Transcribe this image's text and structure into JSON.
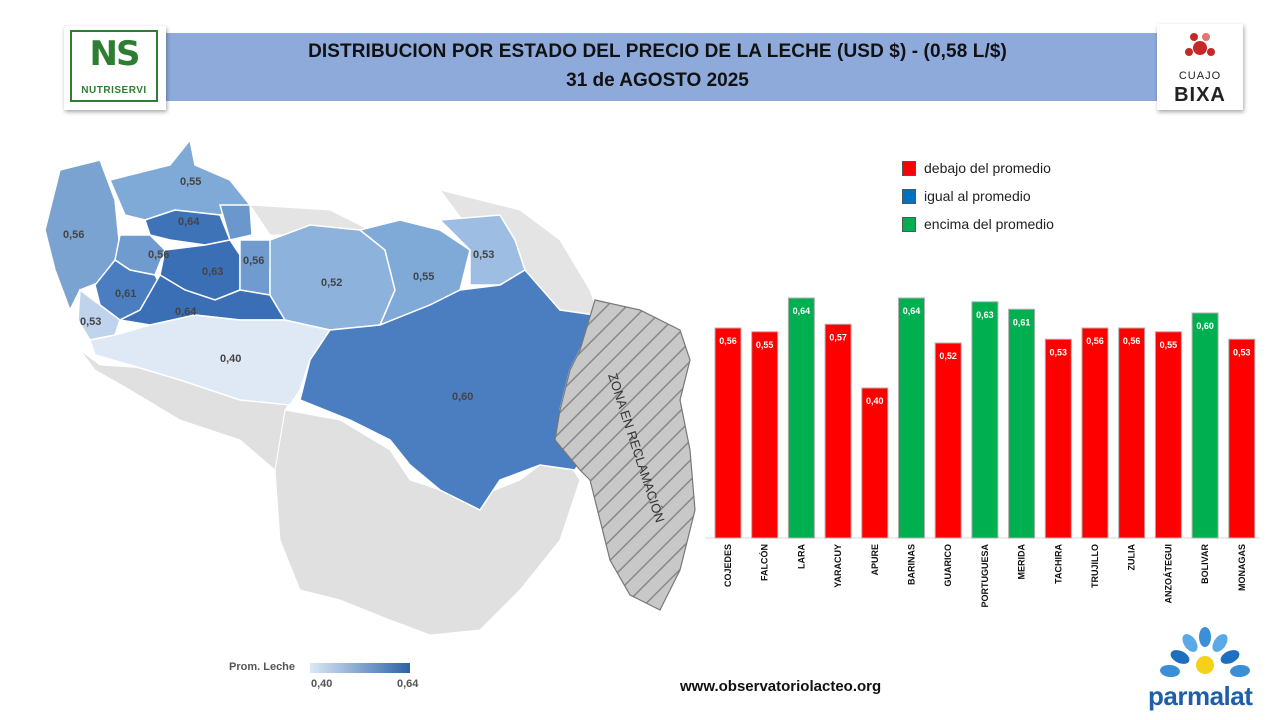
{
  "header": {
    "title_line1": "DISTRIBUCION POR ESTADO DEL PRECIO DE LA LECHE (USD $)  - (0,58 L/$)",
    "title_line2": "31 de AGOSTO 2025",
    "left_logo": {
      "letters": "NS",
      "name": "NUTRISERVI"
    },
    "right_logo": {
      "name": "CUAJO",
      "brand": "BIXA"
    }
  },
  "map": {
    "labels": [
      "0,55",
      "0,64",
      "0,56",
      "0,56",
      "0,63",
      "0,56",
      "0,52",
      "0,55",
      "0,53",
      "0,61",
      "0,64",
      "0,53",
      "0,40",
      "0,60"
    ],
    "claim_zone_label": "ZONA EN RECLAMACIÓN",
    "ramp": {
      "title": "Prom. Leche",
      "min": "0,40",
      "max": "0,64"
    }
  },
  "legend": {
    "items": [
      {
        "label": "debajo del promedio",
        "color": "#ff0000"
      },
      {
        "label": "igual al promedio",
        "color": "#0070c0"
      },
      {
        "label": "encima del promedio",
        "color": "#00b050"
      }
    ]
  },
  "chart_data": {
    "type": "bar",
    "categories": [
      "COJEDES",
      "FALCÓN",
      "LARA",
      "YARACUY",
      "APURE",
      "BARINAS",
      "GUARICO",
      "PORTUGUESA",
      "MERIDA",
      "TACHIRA",
      "TRUJILLO",
      "ZULIA",
      "ANZOÁTEGUI",
      "BOLIVAR",
      "MONAGAS"
    ],
    "values": [
      0.56,
      0.55,
      0.64,
      0.57,
      0.4,
      0.64,
      0.52,
      0.63,
      0.61,
      0.53,
      0.56,
      0.56,
      0.55,
      0.6,
      0.53
    ],
    "value_labels": [
      "0,56",
      "0,55",
      "0,64",
      "0,57",
      "0,40",
      "0,64",
      "0,52",
      "0,63",
      "0,61",
      "0,53",
      "0,56",
      "0,56",
      "0,55",
      "0,60",
      "0,53"
    ],
    "bar_colors": [
      "#ff0000",
      "#ff0000",
      "#00b050",
      "#ff0000",
      "#ff0000",
      "#00b050",
      "#ff0000",
      "#00b050",
      "#00b050",
      "#ff0000",
      "#ff0000",
      "#ff0000",
      "#ff0000",
      "#00b050",
      "#ff0000"
    ],
    "average": 0.58,
    "ylim": [
      0,
      0.64
    ],
    "grid": false,
    "legend_position": "top-right"
  },
  "footer": {
    "website": "www.observatoriolacteo.org",
    "brand": "parmalat"
  }
}
